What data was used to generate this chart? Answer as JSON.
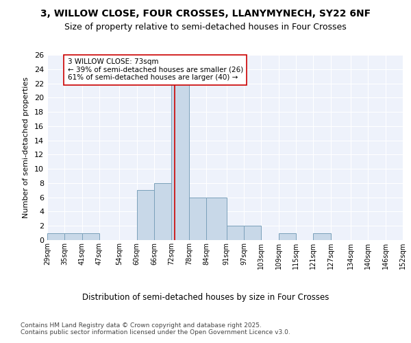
{
  "title1": "3, WILLOW CLOSE, FOUR CROSSES, LLANYMYNECH, SY22 6NF",
  "title2": "Size of property relative to semi-detached houses in Four Crosses",
  "xlabel": "Distribution of semi-detached houses by size in Four Crosses",
  "ylabel": "Number of semi-detached properties",
  "bin_labels": [
    "29sqm",
    "35sqm",
    "41sqm",
    "47sqm",
    "54sqm",
    "60sqm",
    "66sqm",
    "72sqm",
    "78sqm",
    "84sqm",
    "91sqm",
    "97sqm",
    "103sqm",
    "109sqm",
    "115sqm",
    "121sqm",
    "127sqm",
    "134sqm",
    "140sqm",
    "146sqm",
    "152sqm"
  ],
  "bin_edges": [
    29,
    35,
    41,
    47,
    54,
    60,
    66,
    72,
    78,
    84,
    91,
    97,
    103,
    109,
    115,
    121,
    127,
    134,
    140,
    146,
    152
  ],
  "bar_heights": [
    1,
    1,
    1,
    0,
    0,
    7,
    8,
    22,
    6,
    6,
    2,
    2,
    0,
    1,
    0,
    1,
    0,
    0,
    0,
    0
  ],
  "bar_color": "#c8d8e8",
  "bar_edge_color": "#7aa0ba",
  "property_value": 73,
  "red_line_color": "#cc0000",
  "annotation_text": "3 WILLOW CLOSE: 73sqm\n← 39% of semi-detached houses are smaller (26)\n61% of semi-detached houses are larger (40) →",
  "annotation_box_color": "#ffffff",
  "annotation_box_edge": "#cc0000",
  "ylim": [
    0,
    26
  ],
  "yticks": [
    0,
    2,
    4,
    6,
    8,
    10,
    12,
    14,
    16,
    18,
    20,
    22,
    24,
    26
  ],
  "background_color": "#eef2fb",
  "footer_text": "Contains HM Land Registry data © Crown copyright and database right 2025.\nContains public sector information licensed under the Open Government Licence v3.0.",
  "title1_fontsize": 10,
  "title2_fontsize": 9,
  "xlabel_fontsize": 8.5,
  "ylabel_fontsize": 8,
  "footer_fontsize": 6.5,
  "annot_fontsize": 7.5
}
